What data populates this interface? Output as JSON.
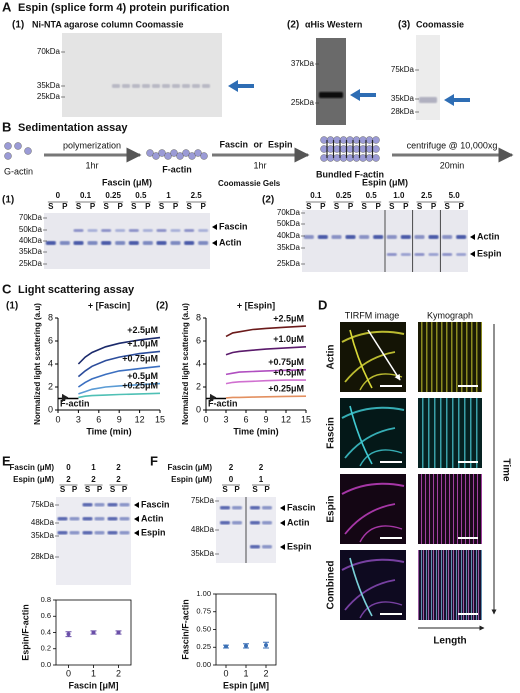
{
  "panels": {
    "A": {
      "letter": "A",
      "title": "Espin (splice form 4) protein purification",
      "gels": [
        {
          "label": "(1)",
          "title": "Ni-NTA agarose column Coomassie",
          "markers": [
            "70kDa",
            "35kDa",
            "25kDa"
          ]
        },
        {
          "label": "(2)",
          "title": "αHis Western",
          "markers": [
            "37kDa",
            "25kDa"
          ]
        },
        {
          "label": "(3)",
          "title": "Coomassie",
          "markers": [
            "75kDa",
            "35kDa",
            "28kDa"
          ]
        }
      ]
    },
    "B": {
      "letter": "B",
      "title": "Sedimentation assay",
      "scheme": {
        "g_actin": "G-actin",
        "step1": "polymerization",
        "time1": "1hr",
        "f_actin": "F-actin",
        "fascin": "Fascin",
        "or": "or",
        "espin": "Espin",
        "time2": "1hr",
        "bundled": "Bundled F-actin",
        "step3": "centrifuge @ 10,000xg",
        "time3": "20min"
      },
      "note": "Coomassie Gels",
      "gels": [
        {
          "label": "(1)",
          "title": "Fascin (μM)",
          "concentrations": [
            "0",
            "0.1",
            "0.25",
            "0.5",
            "1",
            "2.5"
          ],
          "lanes": [
            "S",
            "P"
          ],
          "markers": [
            "70kDa",
            "50kDa",
            "40kDa",
            "35kDa",
            "25kDa"
          ],
          "bands": [
            "Fascin",
            "Actin"
          ]
        },
        {
          "label": "(2)",
          "title": "Espin (μM)",
          "concentrations": [
            "0.1",
            "0.25",
            "0.5",
            "1.0",
            "2.5",
            "5.0"
          ],
          "lanes": [
            "S",
            "P"
          ],
          "markers": [
            "70kDa",
            "50kDa",
            "40kDa",
            "35kDa",
            "25kDa"
          ],
          "bands": [
            "Actin",
            "Espin"
          ]
        }
      ]
    },
    "C": {
      "letter": "C",
      "title": "Light scattering assay",
      "charts": [
        {
          "type": "line",
          "label": "(1)",
          "title": "+ [Fascin]",
          "y_label": "Normalized light scattering (a.u)",
          "x_label": "Time (min)",
          "x": [
            0,
            3,
            4,
            5,
            7,
            9,
            12,
            15
          ],
          "xlim": [
            0,
            15
          ],
          "xticks": [
            0,
            3,
            6,
            9,
            12,
            15
          ],
          "ylim": [
            0,
            8
          ],
          "yticks": [
            0,
            2,
            4,
            6,
            8
          ],
          "series": [
            {
              "name": "+2.5μM",
              "color": "#1b2a6b",
              "values": [
                null,
                4.0,
                4.6,
                5.0,
                5.5,
                5.8,
                6.1,
                6.3
              ]
            },
            {
              "name": "+1.0μM",
              "color": "#2b4c9b",
              "values": [
                null,
                2.9,
                3.4,
                3.8,
                4.3,
                4.6,
                4.9,
                5.1
              ]
            },
            {
              "name": "+0.75μM",
              "color": "#3b6fc0",
              "values": [
                null,
                2.0,
                2.4,
                2.7,
                3.1,
                3.4,
                3.6,
                3.8
              ]
            },
            {
              "name": "+0.5μM",
              "color": "#5a9bd5",
              "values": [
                null,
                1.4,
                1.6,
                1.8,
                2.0,
                2.1,
                2.2,
                2.3
              ]
            },
            {
              "name": "+0.25μM",
              "color": "#4fc0b5",
              "values": [
                null,
                1.1,
                1.2,
                1.25,
                1.3,
                1.35,
                1.4,
                1.45
              ]
            },
            {
              "name": "F-actin",
              "color": "#000000",
              "values": [
                1,
                1,
                null,
                null,
                null,
                null,
                null,
                null
              ]
            }
          ]
        },
        {
          "type": "line",
          "label": "(2)",
          "title": "+ [Espin]",
          "y_label": "Normalized light scattering (a.u)",
          "x_label": "Time (min)",
          "x": [
            0,
            3,
            4,
            5,
            7,
            9,
            12,
            15
          ],
          "xlim": [
            0,
            15
          ],
          "xticks": [
            0,
            3,
            6,
            9,
            12,
            15
          ],
          "ylim": [
            0,
            8
          ],
          "yticks": [
            0,
            2,
            4,
            6,
            8
          ],
          "series": [
            {
              "name": "+2.5μM",
              "color": "#6b1a1a",
              "values": [
                null,
                6.4,
                6.7,
                6.8,
                7.0,
                7.1,
                7.2,
                7.3
              ]
            },
            {
              "name": "+1.0μM",
              "color": "#5a1a6b",
              "values": [
                null,
                4.8,
                5.0,
                5.1,
                5.2,
                5.3,
                5.4,
                5.5
              ]
            },
            {
              "name": "+0.75μM",
              "color": "#b04fc0",
              "values": [
                null,
                3.1,
                3.2,
                3.3,
                3.35,
                3.4,
                3.45,
                3.5
              ]
            },
            {
              "name": "+0.5μM",
              "color": "#d070d0",
              "values": [
                null,
                2.3,
                2.4,
                2.45,
                2.5,
                2.55,
                2.6,
                2.6
              ]
            },
            {
              "name": "+0.25μM",
              "color": "#e39060",
              "values": [
                null,
                1.05,
                1.1,
                1.1,
                1.12,
                1.15,
                1.18,
                1.2
              ]
            },
            {
              "name": "F-actin",
              "color": "#000000",
              "values": [
                1,
                1,
                null,
                null,
                null,
                null,
                null,
                null
              ]
            }
          ]
        }
      ]
    },
    "D": {
      "letter": "D",
      "columns": [
        "TIRFM image",
        "Kymograph"
      ],
      "rows": [
        "Actin",
        "Fascin",
        "Espin",
        "Combined"
      ],
      "time_axis": "Time",
      "length_axis": "Length"
    },
    "E": {
      "letter": "E",
      "gel": {
        "rows": [
          {
            "label": "Fascin (μM)",
            "values": [
              "0",
              "1",
              "2"
            ]
          },
          {
            "label": "Espin (μM)",
            "values": [
              "2",
              "2",
              "2"
            ]
          }
        ],
        "lanes": [
          "S",
          "P"
        ],
        "markers": [
          "75kDa",
          "48kDa",
          "35kDa",
          "28kDa"
        ],
        "bands": [
          "Fascin",
          "Actin",
          "Espin"
        ]
      },
      "chart": {
        "type": "dot",
        "categories": [
          "0",
          "1",
          "2"
        ],
        "values": [
          0.38,
          0.4,
          0.4
        ],
        "errors": [
          0.03,
          0.02,
          0.02
        ],
        "color": "#6a4fa8",
        "ylim": [
          0,
          0.8
        ],
        "yticks": [
          {
            "value": 0,
            "label": "0.0"
          },
          0.2,
          0.4,
          0.6,
          0.8
        ],
        "y_label": "Espin/F-actin",
        "x_label": "Fascin [μM]"
      }
    },
    "F": {
      "letter": "F",
      "gel": {
        "rows": [
          {
            "label": "Fascin (μM)",
            "values": [
              "2",
              "2"
            ]
          },
          {
            "label": "Espin (μM)",
            "values": [
              "0",
              "1"
            ]
          }
        ],
        "lanes": [
          "S",
          "P"
        ],
        "markers": [
          "75kDa",
          "48kDa",
          "35kDa"
        ],
        "bands": [
          "Fascin",
          "Actin",
          "Espin"
        ]
      },
      "chart": {
        "type": "dot",
        "categories": [
          "0",
          "1",
          "2"
        ],
        "values": [
          0.26,
          0.27,
          0.28
        ],
        "errors": [
          0.02,
          0.03,
          0.04
        ],
        "color": "#3a6fb5",
        "ylim": [
          0,
          1
        ],
        "yticks": [
          {
            "value": 0,
            "label": "0.00"
          },
          0.25,
          {
            "value": 0.5,
            "label": "0.50"
          },
          0.75,
          {
            "value": 1,
            "label": "1.00"
          }
        ],
        "y_label": "Fascin/F-actin",
        "x_label": "Espin [μM]"
      }
    }
  }
}
